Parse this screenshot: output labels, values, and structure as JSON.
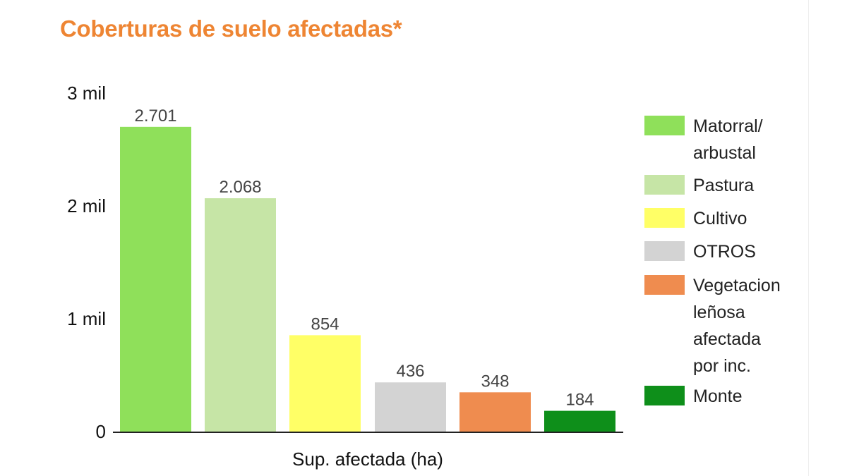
{
  "chart_data": {
    "type": "bar",
    "title": "Coberturas de suelo afectadas*",
    "xlabel": "Sup. afectada (ha)",
    "ylabel": "",
    "ylim": [
      0,
      3000
    ],
    "yticks": [
      0,
      1000,
      2000,
      3000
    ],
    "ytick_labels": [
      "0",
      "1 mil",
      "2 mil",
      "3 mil"
    ],
    "grid": false,
    "legend_position": "right",
    "series": [
      {
        "name": "Matorral/ arbustal",
        "value": 2701,
        "label": "2.701",
        "color": "#8FE05A"
      },
      {
        "name": "Pastura",
        "value": 2068,
        "label": "2.068",
        "color": "#C6E5A6"
      },
      {
        "name": "Cultivo",
        "value": 854,
        "label": "854",
        "color": "#FFFF66"
      },
      {
        "name": "OTROS",
        "value": 436,
        "label": "436",
        "color": "#D3D3D3"
      },
      {
        "name": "Vegetacion leñosa afectada por inc.",
        "value": 348,
        "label": "348",
        "color": "#EF8C4F"
      },
      {
        "name": "Monte",
        "value": 184,
        "label": "184",
        "color": "#0E8F1A"
      }
    ]
  }
}
